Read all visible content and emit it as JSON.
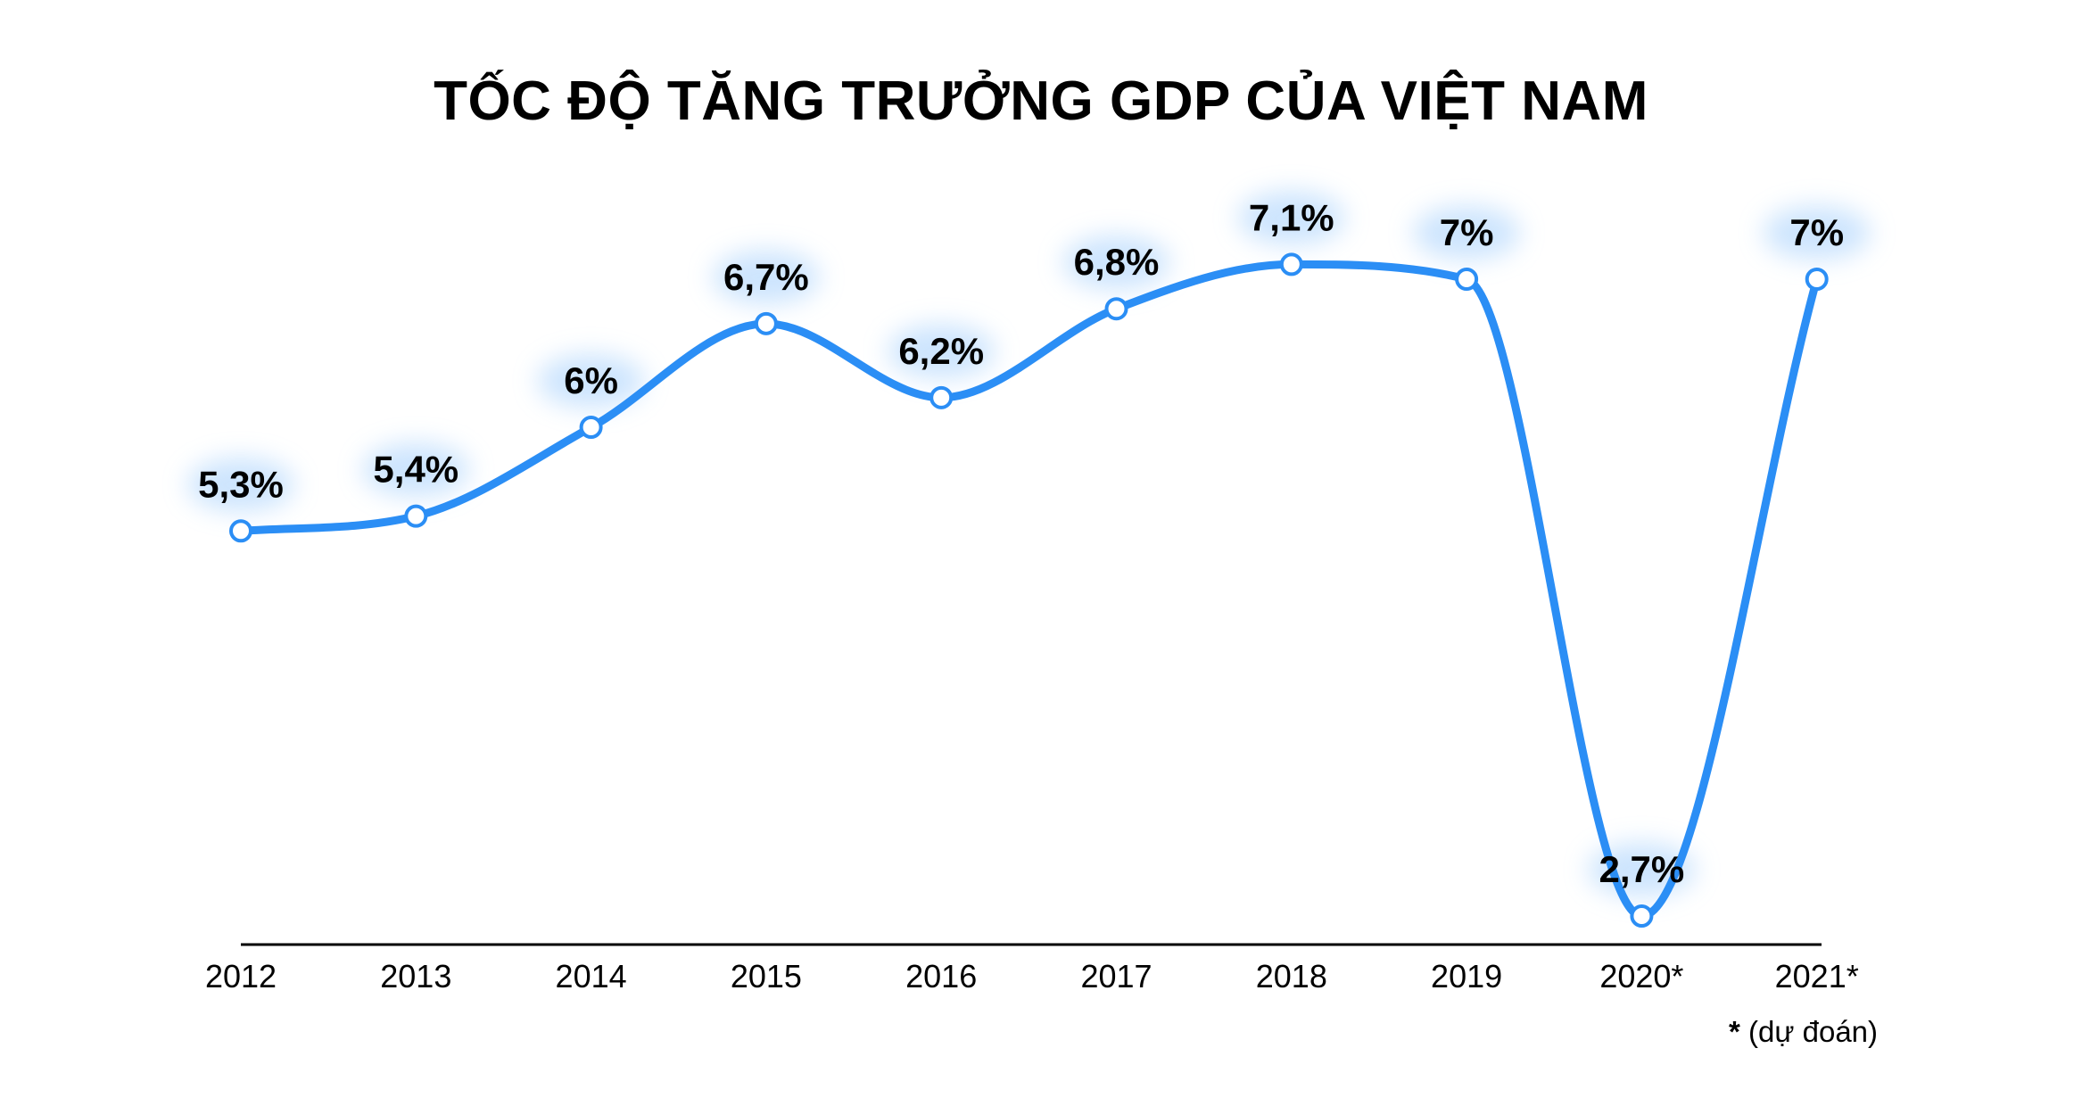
{
  "chart_data": {
    "type": "line",
    "title": "TỐC ĐỘ TĂNG TRƯỞNG GDP CỦA VIỆT NAM",
    "categories": [
      "2012",
      "2013",
      "2014",
      "2015",
      "2016",
      "2017",
      "2018",
      "2019",
      "2020*",
      "2021*"
    ],
    "values": [
      5.3,
      5.4,
      6.0,
      6.7,
      6.2,
      6.8,
      7.1,
      7.0,
      2.7,
      7.0
    ],
    "data_labels": [
      "5,3%",
      "5,4%",
      "6%",
      "6,7%",
      "6,2%",
      "6,8%",
      "7,1%",
      "7%",
      "2,7%",
      "7%"
    ],
    "xlabel": "",
    "ylabel": "",
    "ylim": [
      2.6,
      7.3
    ],
    "grid": false,
    "legend": "none",
    "line_color": "#2b8ef5",
    "label_glow_color": "#bcdcfd"
  },
  "footnote": {
    "star": "*",
    "text": " (dự đoán)"
  }
}
